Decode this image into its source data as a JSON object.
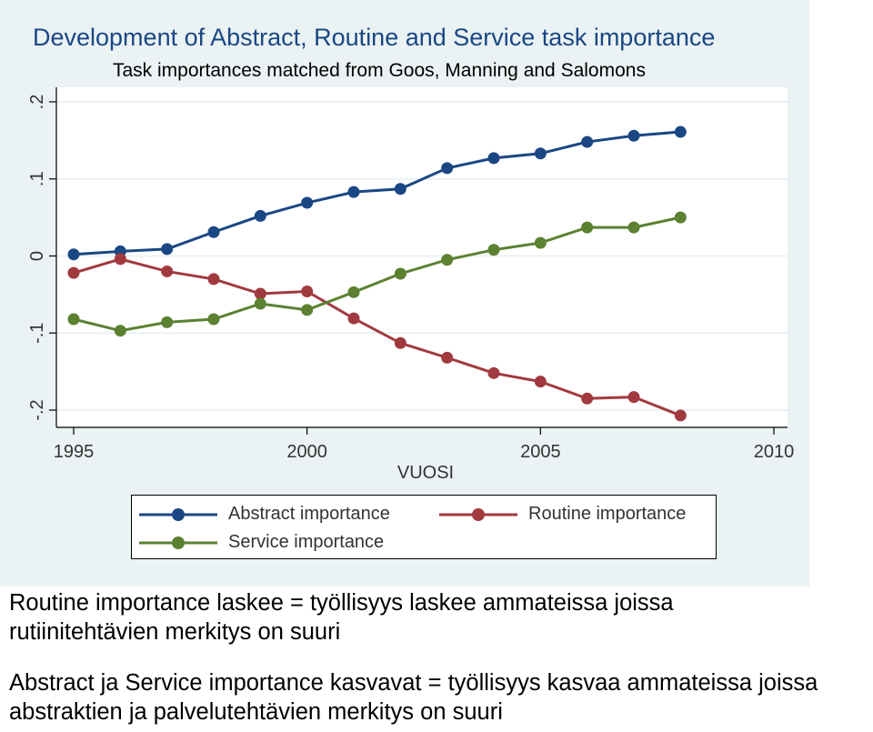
{
  "chart_data": {
    "type": "line",
    "title": "Development of Abstract, Routine and Service task importance",
    "subtitle": "Task importances matched from Goos, Manning and Salomons",
    "xlabel": "VUOSI",
    "ylabel": "",
    "xlim": [
      1995,
      2010
    ],
    "ylim": [
      -0.2,
      0.2
    ],
    "x_ticks": [
      {
        "value": 1995,
        "label": "1995"
      },
      {
        "value": 2000,
        "label": "2000"
      },
      {
        "value": 2005,
        "label": "2005"
      },
      {
        "value": 2010,
        "label": "2010"
      }
    ],
    "y_ticks": [
      {
        "value": -0.2,
        "label": "-.2"
      },
      {
        "value": -0.1,
        "label": "-.1"
      },
      {
        "value": 0,
        "label": "0"
      },
      {
        "value": 0.1,
        "label": ".1"
      },
      {
        "value": 0.2,
        "label": ".2"
      }
    ],
    "grid": "horizontal",
    "legend_position": "bottom",
    "x": [
      1995,
      1996,
      1997,
      1998,
      1999,
      2000,
      2001,
      2002,
      2003,
      2004,
      2005,
      2006,
      2007,
      2008
    ],
    "series": [
      {
        "name": "Abstract importance",
        "color": "#1a4784",
        "values": [
          0.002,
          0.006,
          0.009,
          0.031,
          0.052,
          0.069,
          0.083,
          0.087,
          0.114,
          0.127,
          0.133,
          0.148,
          0.156,
          0.161
        ]
      },
      {
        "name": "Routine importance",
        "color": "#a13a3f",
        "values": [
          -0.022,
          -0.004,
          -0.02,
          -0.03,
          -0.049,
          -0.046,
          -0.081,
          -0.113,
          -0.132,
          -0.152,
          -0.163,
          -0.185,
          -0.183,
          -0.207
        ]
      },
      {
        "name": "Service importance",
        "color": "#5b8131",
        "values": [
          -0.082,
          -0.097,
          -0.086,
          -0.082,
          -0.062,
          -0.07,
          -0.047,
          -0.023,
          -0.005,
          0.008,
          0.017,
          0.037,
          0.037,
          0.05
        ]
      }
    ]
  },
  "captions": [
    "Routine importance laskee = työllisyys laskee ammateissa joissa rutiinitehtävien merkitys on suuri",
    "Abstract ja Service importance kasvavat = työllisyys kasvaa ammateissa joissa abstraktien ja palvelutehtävien merkitys on suuri"
  ]
}
